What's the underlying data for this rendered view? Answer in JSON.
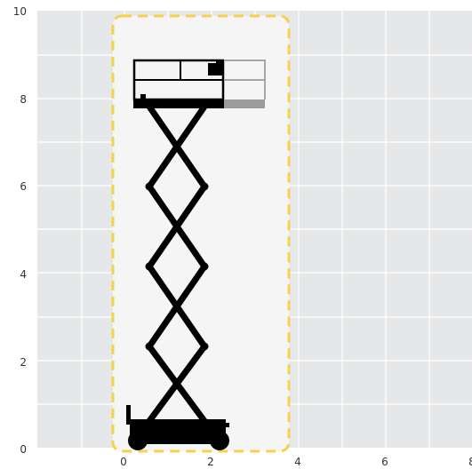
{
  "x_ticks": [
    "0",
    "2",
    "4",
    "6",
    "8"
  ],
  "y_ticks": [
    "0",
    "2",
    "4",
    "6",
    "8",
    "10"
  ],
  "colors": {
    "plot_bg": "#e6e7e9",
    "grid": "#ffffff",
    "envelope_fill": "#f5f5f5",
    "envelope_border": "#f6d24a",
    "machine": "#000000",
    "extension_deck": "#9b9b9b",
    "extension_rail": "#a6a6a6"
  },
  "icons": [
    "scissor-lift-icon"
  ]
}
